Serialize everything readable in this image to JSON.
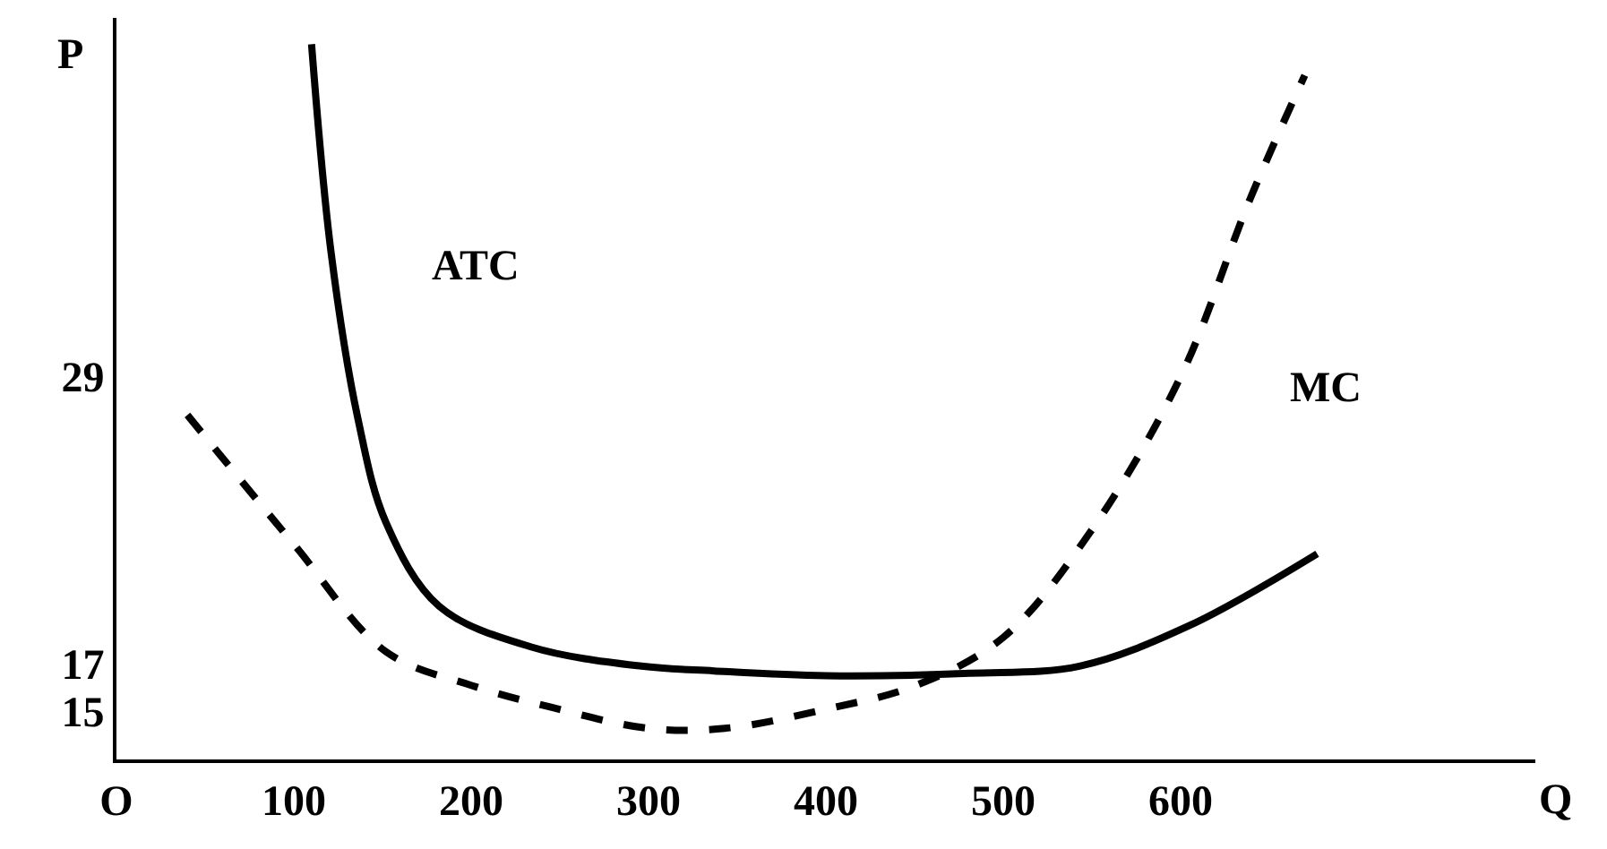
{
  "chart_data": {
    "type": "line",
    "xlabel": "Q",
    "ylabel": "P",
    "xlim": [
      0,
      800
    ],
    "ylim": [
      13,
      44
    ],
    "xticks": [
      {
        "value": 0,
        "label": "O"
      },
      100,
      200,
      300,
      400,
      500,
      600
    ],
    "yticks": [
      15,
      17,
      29
    ],
    "marker": "none",
    "series": [
      {
        "name": "ATC",
        "color": "#000000",
        "line_style": "solid",
        "x": [
          110,
          121,
          136,
          152,
          182,
          234,
          296,
          337,
          400,
          481,
          543,
          605,
          677
        ],
        "values": [
          42.9,
          34.2,
          27.3,
          22.9,
          19.4,
          17.7,
          16.9,
          16.7,
          16.5,
          16.6,
          16.9,
          18.6,
          21.6
        ]
      },
      {
        "name": "MC",
        "color": "#000000",
        "line_style": "dashed",
        "x": [
          40,
          100,
          152,
          200,
          244,
          300,
          343,
          400,
          451,
          500,
          549,
          600,
          639,
          670
        ],
        "values": [
          27.4,
          22.0,
          17.5,
          16.1,
          15.2,
          14.3,
          14.3,
          15.1,
          16.1,
          18.1,
          22.5,
          29.0,
          36.4,
          41.6
        ]
      }
    ]
  }
}
